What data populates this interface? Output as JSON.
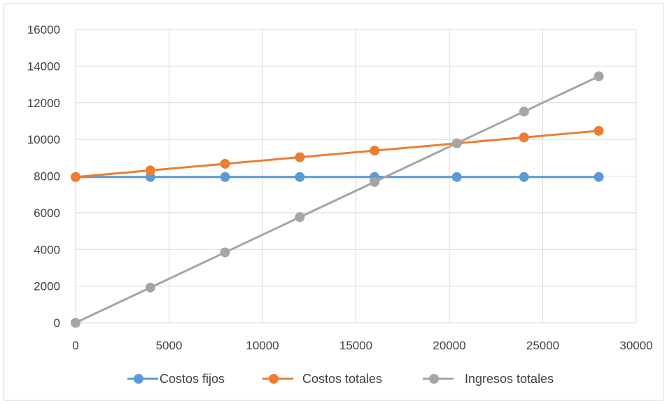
{
  "chart_data": {
    "type": "line",
    "title": "",
    "xlabel": "",
    "ylabel": "",
    "xlim": [
      0,
      30000
    ],
    "ylim": [
      0,
      16000
    ],
    "x_ticks": [
      0,
      5000,
      10000,
      15000,
      20000,
      25000,
      30000
    ],
    "y_ticks": [
      0,
      2000,
      4000,
      6000,
      8000,
      10000,
      12000,
      14000,
      16000
    ],
    "grid": true,
    "legend_position": "bottom",
    "series": [
      {
        "name": "Costos fijos",
        "color": "#5b9bd5",
        "x": [
          0,
          4000,
          8000,
          12000,
          16000,
          20400,
          24000,
          28000
        ],
        "y": [
          7950,
          7950,
          7950,
          7950,
          7950,
          7950,
          7950,
          7950
        ]
      },
      {
        "name": "Costos totales",
        "color": "#ed7d31",
        "x": [
          0,
          4000,
          8000,
          12000,
          16000,
          20400,
          24000,
          28000
        ],
        "y": [
          7950,
          8310,
          8670,
          9030,
          9390,
          9786,
          10110,
          10470
        ]
      },
      {
        "name": "Ingresos totales",
        "color": "#a5a5a5",
        "x": [
          0,
          4000,
          8000,
          12000,
          16000,
          20400,
          24000,
          28000
        ],
        "y": [
          0,
          1920,
          3840,
          5760,
          7680,
          9792,
          11520,
          13440
        ]
      }
    ]
  }
}
